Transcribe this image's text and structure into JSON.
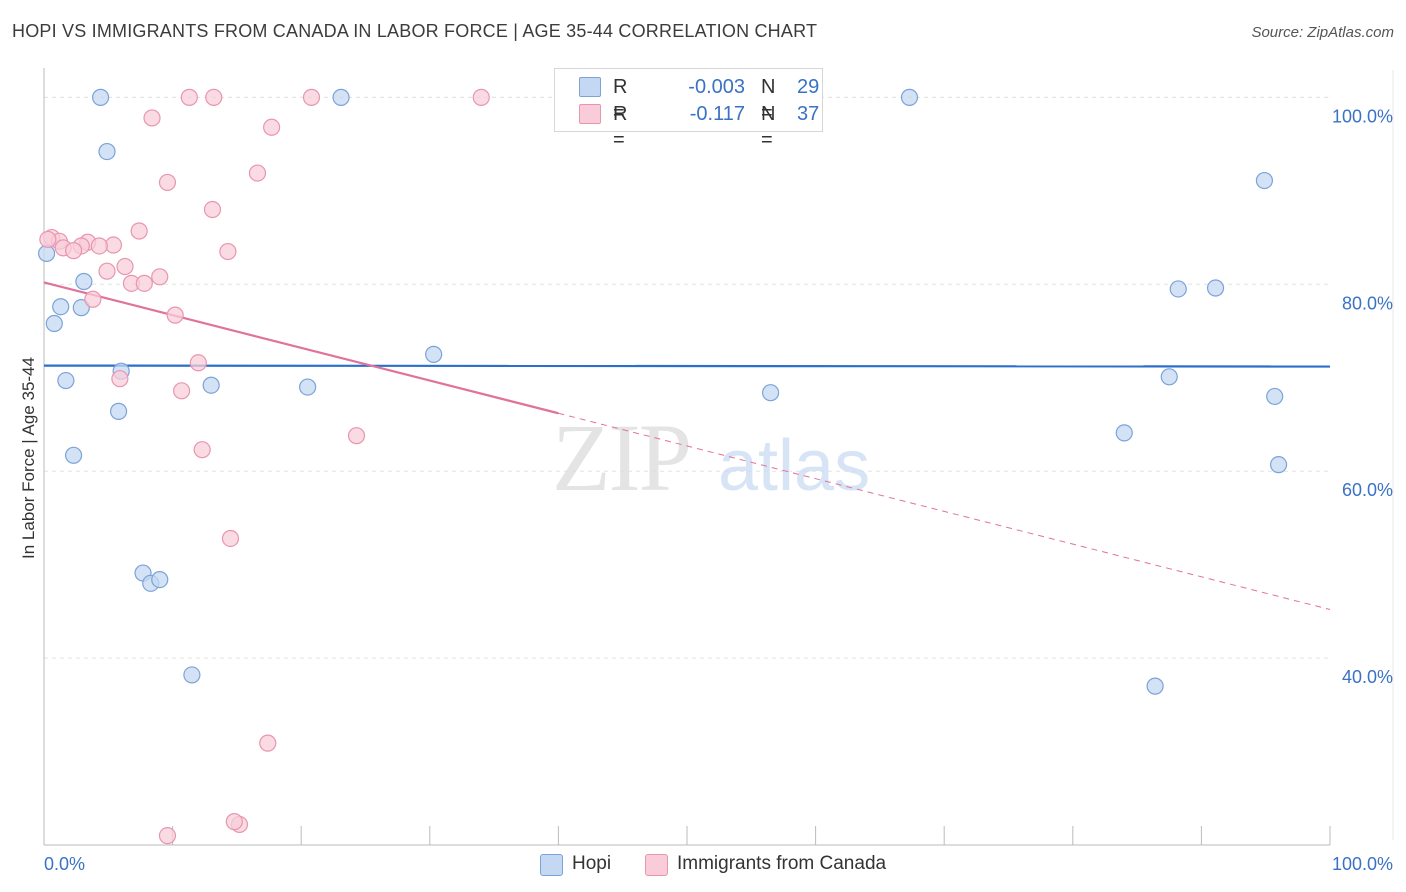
{
  "title": "HOPI VS IMMIGRANTS FROM CANADA IN LABOR FORCE | AGE 35-44 CORRELATION CHART",
  "source": "Source: ZipAtlas.com",
  "watermark": {
    "zip": "ZIP",
    "atlas": "atlas"
  },
  "legend": {
    "r_label": "R =",
    "n_label": "N =",
    "rows": [
      {
        "name": "Hopi",
        "r": "-0.003",
        "n": "29"
      },
      {
        "name": "Immigrants from Canada",
        "r": "-0.117",
        "n": "37"
      }
    ]
  },
  "colors": {
    "hopi_fill": "#c5d8f3",
    "hopi_stroke": "#7aa3d8",
    "hopi_line": "#2a6fc9",
    "canada_fill": "#f8cdd9",
    "canada_stroke": "#e896b0",
    "canada_line": "#e0739a",
    "axis_text": "#3a72c4",
    "grid": "#e4e4e4"
  },
  "chart_data": {
    "type": "scatter",
    "title": "HOPI VS IMMIGRANTS FROM CANADA IN LABOR FORCE | AGE 35-44 CORRELATION CHART",
    "xlabel": "",
    "ylabel": "In Labor Force | Age 35-44",
    "xlim": [
      0,
      100
    ],
    "ylim": [
      20,
      104
    ],
    "x_tick_labels": [
      "0.0%",
      "100.0%"
    ],
    "y_ticks": [
      40,
      60,
      80,
      100
    ],
    "y_tick_labels": [
      "40.0%",
      "60.0%",
      "80.0%",
      "100.0%"
    ],
    "grid": true,
    "legend_position": "bottom-center",
    "series": [
      {
        "name": "Hopi",
        "color": "#7aa3d8",
        "trend": {
          "x": [
            0,
            100
          ],
          "y": [
            71.3,
            71.2
          ],
          "dashed_after": null
        },
        "points": [
          {
            "x": 0.2,
            "y": 83.3
          },
          {
            "x": 4.4,
            "y": 100
          },
          {
            "x": 23.1,
            "y": 100
          },
          {
            "x": 67.3,
            "y": 100
          },
          {
            "x": 4.9,
            "y": 94.2
          },
          {
            "x": 94.9,
            "y": 91.1
          },
          {
            "x": 3.1,
            "y": 80.3
          },
          {
            "x": 1.3,
            "y": 77.6
          },
          {
            "x": 2.9,
            "y": 77.5
          },
          {
            "x": 0.8,
            "y": 75.8
          },
          {
            "x": 88.2,
            "y": 79.5
          },
          {
            "x": 91.1,
            "y": 79.6
          },
          {
            "x": 30.3,
            "y": 72.5
          },
          {
            "x": 6.0,
            "y": 70.7
          },
          {
            "x": 1.7,
            "y": 69.7
          },
          {
            "x": 13.0,
            "y": 69.2
          },
          {
            "x": 20.5,
            "y": 69.0
          },
          {
            "x": 56.5,
            "y": 68.4
          },
          {
            "x": 87.5,
            "y": 70.1
          },
          {
            "x": 95.7,
            "y": 68.0
          },
          {
            "x": 5.8,
            "y": 66.4
          },
          {
            "x": 84.0,
            "y": 64.1
          },
          {
            "x": 2.3,
            "y": 61.7
          },
          {
            "x": 96.0,
            "y": 60.7
          },
          {
            "x": 7.7,
            "y": 49.1
          },
          {
            "x": 8.3,
            "y": 48.0
          },
          {
            "x": 9.0,
            "y": 48.4
          },
          {
            "x": 11.5,
            "y": 38.2
          },
          {
            "x": 86.4,
            "y": 37.0
          }
        ]
      },
      {
        "name": "Immigrants from Canada",
        "color": "#e896b0",
        "trend": {
          "x": [
            0,
            100
          ],
          "y": [
            80.2,
            45.2
          ],
          "dashed_after": 40
        },
        "points": [
          {
            "x": 11.3,
            "y": 100
          },
          {
            "x": 13.2,
            "y": 100
          },
          {
            "x": 20.8,
            "y": 100
          },
          {
            "x": 34.0,
            "y": 100
          },
          {
            "x": 8.4,
            "y": 97.8
          },
          {
            "x": 17.7,
            "y": 96.8
          },
          {
            "x": 16.6,
            "y": 91.9
          },
          {
            "x": 9.6,
            "y": 90.9
          },
          {
            "x": 13.1,
            "y": 88.0
          },
          {
            "x": 7.4,
            "y": 85.7
          },
          {
            "x": 0.6,
            "y": 85.0
          },
          {
            "x": 1.2,
            "y": 84.6
          },
          {
            "x": 3.4,
            "y": 84.5
          },
          {
            "x": 2.9,
            "y": 84.1
          },
          {
            "x": 1.5,
            "y": 83.9
          },
          {
            "x": 2.3,
            "y": 83.6
          },
          {
            "x": 5.4,
            "y": 84.2
          },
          {
            "x": 4.3,
            "y": 84.1
          },
          {
            "x": 14.3,
            "y": 83.5
          },
          {
            "x": 6.3,
            "y": 81.9
          },
          {
            "x": 4.9,
            "y": 81.4
          },
          {
            "x": 9.0,
            "y": 80.8
          },
          {
            "x": 6.8,
            "y": 80.1
          },
          {
            "x": 7.8,
            "y": 80.1
          },
          {
            "x": 3.8,
            "y": 78.4
          },
          {
            "x": 10.2,
            "y": 76.7
          },
          {
            "x": 12.0,
            "y": 71.6
          },
          {
            "x": 5.9,
            "y": 69.9
          },
          {
            "x": 10.7,
            "y": 68.6
          },
          {
            "x": 24.3,
            "y": 63.8
          },
          {
            "x": 12.3,
            "y": 62.3
          },
          {
            "x": 14.5,
            "y": 52.8
          },
          {
            "x": 17.4,
            "y": 30.9
          },
          {
            "x": 15.2,
            "y": 22.2
          },
          {
            "x": 14.8,
            "y": 22.5
          },
          {
            "x": 9.6,
            "y": 21.0
          },
          {
            "x": 0.3,
            "y": 84.8
          }
        ]
      }
    ]
  }
}
